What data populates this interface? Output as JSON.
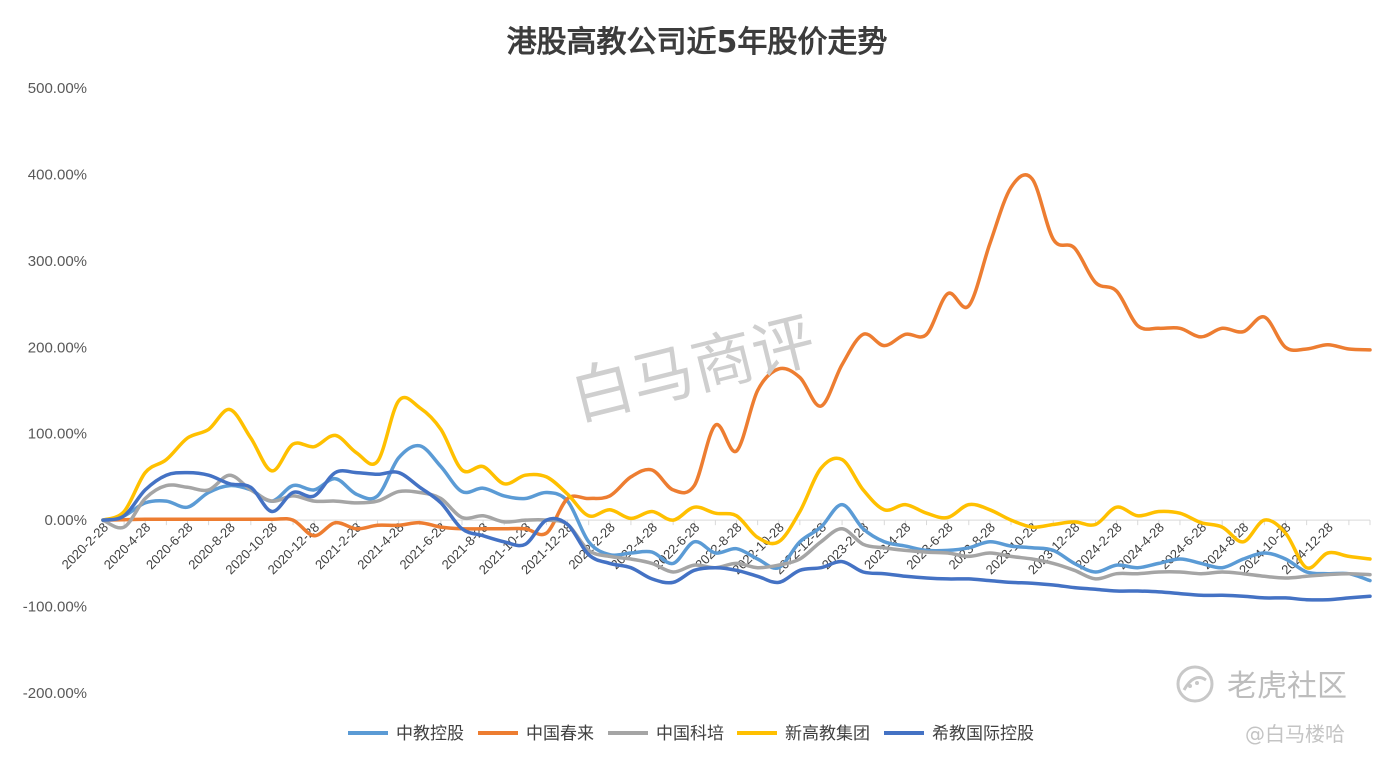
{
  "chart_data": {
    "type": "line",
    "title": "港股高教公司近5年股价走势",
    "xlabel": "",
    "ylabel": "",
    "ylim": [
      -200,
      500
    ],
    "yticks": [
      500,
      400,
      300,
      200,
      100,
      0,
      -100,
      -200
    ],
    "ytick_labels": [
      "500.00%",
      "400.00%",
      "300.00%",
      "200.00%",
      "100.00%",
      "0.00%",
      "-100.00%",
      "-200.00%"
    ],
    "categories": [
      "2020-2-28",
      "2020-4-28",
      "2020-6-28",
      "2020-8-28",
      "2020-10-28",
      "2020-12-28",
      "2021-2-28",
      "2021-4-28",
      "2021-6-28",
      "2021-8-28",
      "2021-10-28",
      "2021-12-28",
      "2022-2-28",
      "2022-4-28",
      "2022-6-28",
      "2022-8-28",
      "2022-10-28",
      "2022-12-28",
      "2023-2-28",
      "2023-4-28",
      "2023-6-28",
      "2023-8-28",
      "2023-10-28",
      "2023-12-28",
      "2024-2-28",
      "2024-4-28",
      "2024-6-28",
      "2024-8-28",
      "2024-10-28",
      "2024-12-28"
    ],
    "x_end_index": 30,
    "grid": false,
    "legend_position": "bottom",
    "series": [
      {
        "name": "中教控股",
        "color": "#5b9bd5",
        "points": [
          [
            0,
            0
          ],
          [
            0.5,
            5
          ],
          [
            1,
            20
          ],
          [
            1.5,
            22
          ],
          [
            2,
            15
          ],
          [
            2.5,
            32
          ],
          [
            3,
            40
          ],
          [
            3.5,
            35
          ],
          [
            4,
            22
          ],
          [
            4.5,
            40
          ],
          [
            5,
            35
          ],
          [
            5.5,
            48
          ],
          [
            6,
            30
          ],
          [
            6.5,
            28
          ],
          [
            7,
            72
          ],
          [
            7.5,
            86
          ],
          [
            8,
            62
          ],
          [
            8.5,
            33
          ],
          [
            9,
            37
          ],
          [
            9.5,
            28
          ],
          [
            10,
            25
          ],
          [
            10.5,
            32
          ],
          [
            11,
            22
          ],
          [
            11.5,
            -25
          ],
          [
            12,
            -40
          ],
          [
            12.5,
            -38
          ],
          [
            13,
            -37
          ],
          [
            13.5,
            -50
          ],
          [
            14,
            -25
          ],
          [
            14.5,
            -38
          ],
          [
            15,
            -33
          ],
          [
            15.5,
            -45
          ],
          [
            16,
            -55
          ],
          [
            16.5,
            -25
          ],
          [
            17,
            -8
          ],
          [
            17.5,
            18
          ],
          [
            18,
            -10
          ],
          [
            18.5,
            -25
          ],
          [
            19,
            -30
          ],
          [
            19.5,
            -35
          ],
          [
            20,
            -35
          ],
          [
            20.5,
            -32
          ],
          [
            21,
            -25
          ],
          [
            21.5,
            -30
          ],
          [
            22,
            -32
          ],
          [
            22.5,
            -35
          ],
          [
            23,
            -50
          ],
          [
            23.5,
            -60
          ],
          [
            24,
            -52
          ],
          [
            24.5,
            -55
          ],
          [
            25,
            -50
          ],
          [
            25.5,
            -45
          ],
          [
            26,
            -50
          ],
          [
            26.5,
            -55
          ],
          [
            27,
            -45
          ],
          [
            27.5,
            -38
          ],
          [
            28,
            -45
          ],
          [
            28.5,
            -60
          ],
          [
            29,
            -62
          ],
          [
            29.5,
            -62
          ],
          [
            30,
            -70
          ]
        ]
      },
      {
        "name": "中国春来",
        "color": "#ed7d31",
        "points": [
          [
            0,
            0
          ],
          [
            1,
            1
          ],
          [
            2,
            1
          ],
          [
            3,
            1
          ],
          [
            4,
            1
          ],
          [
            4.5,
            0
          ],
          [
            5,
            -18
          ],
          [
            5.5,
            -3
          ],
          [
            6,
            -10
          ],
          [
            6.5,
            -6
          ],
          [
            7,
            -6
          ],
          [
            7.5,
            -3
          ],
          [
            8,
            -8
          ],
          [
            8.5,
            -10
          ],
          [
            9,
            -10
          ],
          [
            9.5,
            -10
          ],
          [
            10,
            -10
          ],
          [
            10.5,
            -15
          ],
          [
            11,
            25
          ],
          [
            11.5,
            25
          ],
          [
            12,
            28
          ],
          [
            12.5,
            50
          ],
          [
            13,
            58
          ],
          [
            13.5,
            35
          ],
          [
            14,
            40
          ],
          [
            14.5,
            110
          ],
          [
            15,
            80
          ],
          [
            15.5,
            150
          ],
          [
            16,
            175
          ],
          [
            16.5,
            165
          ],
          [
            17,
            132
          ],
          [
            17.5,
            180
          ],
          [
            18,
            215
          ],
          [
            18.5,
            202
          ],
          [
            19,
            215
          ],
          [
            19.5,
            215
          ],
          [
            20,
            262
          ],
          [
            20.5,
            248
          ],
          [
            21,
            320
          ],
          [
            21.5,
            385
          ],
          [
            22,
            395
          ],
          [
            22.5,
            325
          ],
          [
            23,
            315
          ],
          [
            23.5,
            275
          ],
          [
            24,
            265
          ],
          [
            24.5,
            225
          ],
          [
            25,
            222
          ],
          [
            25.5,
            222
          ],
          [
            26,
            212
          ],
          [
            26.5,
            222
          ],
          [
            27,
            218
          ],
          [
            27.5,
            235
          ],
          [
            28,
            200
          ],
          [
            28.5,
            198
          ],
          [
            29,
            203
          ],
          [
            29.5,
            198
          ],
          [
            30,
            197
          ]
        ]
      },
      {
        "name": "中国科培",
        "color": "#a5a5a5",
        "points": [
          [
            0,
            0
          ],
          [
            0.5,
            -8
          ],
          [
            1,
            25
          ],
          [
            1.5,
            40
          ],
          [
            2,
            38
          ],
          [
            2.5,
            35
          ],
          [
            3,
            52
          ],
          [
            3.5,
            35
          ],
          [
            4,
            22
          ],
          [
            4.5,
            28
          ],
          [
            5,
            22
          ],
          [
            5.5,
            22
          ],
          [
            6,
            20
          ],
          [
            6.5,
            22
          ],
          [
            7,
            33
          ],
          [
            7.5,
            32
          ],
          [
            8,
            25
          ],
          [
            8.5,
            3
          ],
          [
            9,
            5
          ],
          [
            9.5,
            -2
          ],
          [
            10,
            0
          ],
          [
            10.5,
            0
          ],
          [
            11,
            -5
          ],
          [
            11.5,
            -35
          ],
          [
            12,
            -42
          ],
          [
            12.5,
            -45
          ],
          [
            13,
            -50
          ],
          [
            13.5,
            -60
          ],
          [
            14,
            -52
          ],
          [
            14.5,
            -55
          ],
          [
            15,
            -50
          ],
          [
            15.5,
            -55
          ],
          [
            16,
            -52
          ],
          [
            16.5,
            -45
          ],
          [
            17,
            -25
          ],
          [
            17.5,
            -10
          ],
          [
            18,
            -28
          ],
          [
            18.5,
            -32
          ],
          [
            19,
            -35
          ],
          [
            19.5,
            -37
          ],
          [
            20,
            -38
          ],
          [
            20.5,
            -42
          ],
          [
            21,
            -38
          ],
          [
            21.5,
            -42
          ],
          [
            22,
            -45
          ],
          [
            22.5,
            -50
          ],
          [
            23,
            -58
          ],
          [
            23.5,
            -68
          ],
          [
            24,
            -62
          ],
          [
            24.5,
            -62
          ],
          [
            25,
            -60
          ],
          [
            25.5,
            -60
          ],
          [
            26,
            -62
          ],
          [
            26.5,
            -60
          ],
          [
            27,
            -62
          ],
          [
            27.5,
            -65
          ],
          [
            28,
            -67
          ],
          [
            28.5,
            -65
          ],
          [
            29,
            -63
          ],
          [
            29.5,
            -62
          ],
          [
            30,
            -63
          ]
        ]
      },
      {
        "name": "新高教集团",
        "color": "#ffc000",
        "points": [
          [
            0,
            0
          ],
          [
            0.5,
            10
          ],
          [
            1,
            55
          ],
          [
            1.5,
            70
          ],
          [
            2,
            95
          ],
          [
            2.5,
            105
          ],
          [
            3,
            128
          ],
          [
            3.5,
            95
          ],
          [
            4,
            57
          ],
          [
            4.5,
            88
          ],
          [
            5,
            85
          ],
          [
            5.5,
            98
          ],
          [
            6,
            78
          ],
          [
            6.5,
            68
          ],
          [
            7,
            138
          ],
          [
            7.5,
            130
          ],
          [
            8,
            105
          ],
          [
            8.5,
            58
          ],
          [
            9,
            62
          ],
          [
            9.5,
            42
          ],
          [
            10,
            52
          ],
          [
            10.5,
            50
          ],
          [
            11,
            30
          ],
          [
            11.5,
            5
          ],
          [
            12,
            12
          ],
          [
            12.5,
            2
          ],
          [
            13,
            10
          ],
          [
            13.5,
            0
          ],
          [
            14,
            15
          ],
          [
            14.5,
            8
          ],
          [
            15,
            5
          ],
          [
            15.5,
            -20
          ],
          [
            16,
            -25
          ],
          [
            16.5,
            10
          ],
          [
            17,
            60
          ],
          [
            17.5,
            70
          ],
          [
            18,
            35
          ],
          [
            18.5,
            12
          ],
          [
            19,
            18
          ],
          [
            19.5,
            8
          ],
          [
            20,
            3
          ],
          [
            20.5,
            18
          ],
          [
            21,
            12
          ],
          [
            21.5,
            0
          ],
          [
            22,
            -8
          ],
          [
            22.5,
            -5
          ],
          [
            23,
            -2
          ],
          [
            23.5,
            -5
          ],
          [
            24,
            15
          ],
          [
            24.5,
            5
          ],
          [
            25,
            10
          ],
          [
            25.5,
            8
          ],
          [
            26,
            -3
          ],
          [
            26.5,
            -8
          ],
          [
            27,
            -25
          ],
          [
            27.5,
            0
          ],
          [
            28,
            -15
          ],
          [
            28.5,
            -55
          ],
          [
            29,
            -38
          ],
          [
            29.5,
            -42
          ],
          [
            30,
            -45
          ]
        ]
      },
      {
        "name": "希教国际控股",
        "color": "#4472c4",
        "points": [
          [
            0,
            0
          ],
          [
            0.5,
            5
          ],
          [
            1,
            35
          ],
          [
            1.5,
            52
          ],
          [
            2,
            55
          ],
          [
            2.5,
            52
          ],
          [
            3,
            42
          ],
          [
            3.5,
            38
          ],
          [
            4,
            10
          ],
          [
            4.5,
            32
          ],
          [
            5,
            28
          ],
          [
            5.5,
            55
          ],
          [
            6,
            55
          ],
          [
            6.5,
            53
          ],
          [
            7,
            55
          ],
          [
            7.5,
            38
          ],
          [
            8,
            20
          ],
          [
            8.5,
            -10
          ],
          [
            9,
            -18
          ],
          [
            9.5,
            -25
          ],
          [
            10,
            -28
          ],
          [
            10.5,
            0
          ],
          [
            11,
            -5
          ],
          [
            11.5,
            -40
          ],
          [
            12,
            -50
          ],
          [
            12.5,
            -55
          ],
          [
            13,
            -68
          ],
          [
            13.5,
            -72
          ],
          [
            14,
            -58
          ],
          [
            14.5,
            -55
          ],
          [
            15,
            -58
          ],
          [
            15.5,
            -65
          ],
          [
            16,
            -72
          ],
          [
            16.5,
            -58
          ],
          [
            17,
            -55
          ],
          [
            17.5,
            -48
          ],
          [
            18,
            -60
          ],
          [
            18.5,
            -62
          ],
          [
            19,
            -65
          ],
          [
            19.5,
            -67
          ],
          [
            20,
            -68
          ],
          [
            20.5,
            -68
          ],
          [
            21,
            -70
          ],
          [
            21.5,
            -72
          ],
          [
            22,
            -73
          ],
          [
            22.5,
            -75
          ],
          [
            23,
            -78
          ],
          [
            23.5,
            -80
          ],
          [
            24,
            -82
          ],
          [
            24.5,
            -82
          ],
          [
            25,
            -83
          ],
          [
            25.5,
            -85
          ],
          [
            26,
            -87
          ],
          [
            26.5,
            -87
          ],
          [
            27,
            -88
          ],
          [
            27.5,
            -90
          ],
          [
            28,
            -90
          ],
          [
            28.5,
            -92
          ],
          [
            29,
            -92
          ],
          [
            29.5,
            -90
          ],
          [
            30,
            -88
          ]
        ]
      }
    ]
  },
  "watermarks": {
    "center": "白马商评",
    "brand": "老虎社区",
    "user": "@白马楼哈"
  }
}
